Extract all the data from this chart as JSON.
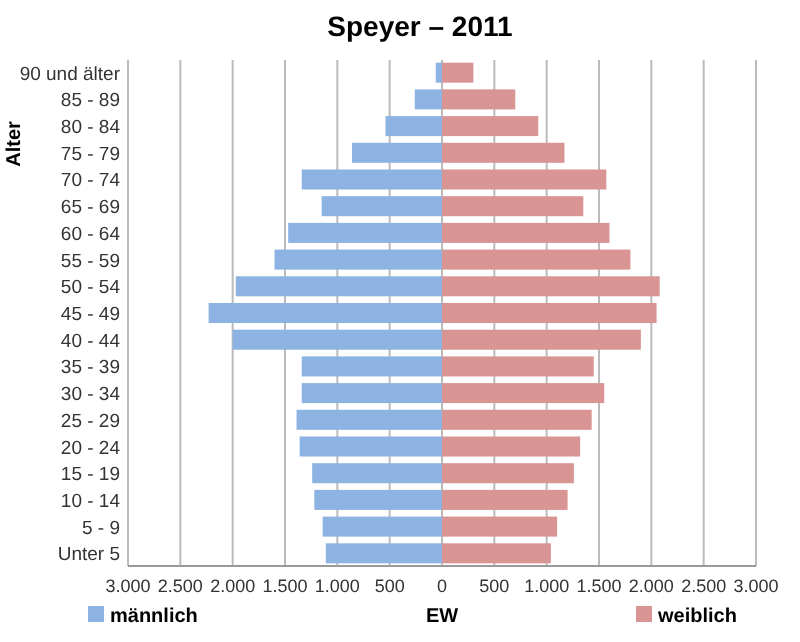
{
  "chart_data": {
    "type": "bar",
    "orientation": "horizontal",
    "title": "Speyer – 2011",
    "xlabel": "EW",
    "ylabel": "Alter",
    "categories": [
      "90 und älter",
      "85 - 89",
      "80 - 84",
      "75 - 79",
      "70 - 74",
      "65 - 69",
      "60 - 64",
      "55 - 59",
      "50 - 54",
      "45 - 49",
      "40 - 44",
      "35 - 39",
      "30 - 34",
      "25 - 29",
      "20 - 24",
      "15 - 19",
      "10 - 14",
      "5 - 9",
      "Unter 5"
    ],
    "series": [
      {
        "name": "männlich",
        "color": "#8db3e2",
        "values": [
          -60,
          -260,
          -540,
          -860,
          -1340,
          -1150,
          -1470,
          -1600,
          -1970,
          -2230,
          -2000,
          -1340,
          -1340,
          -1390,
          -1360,
          -1240,
          -1220,
          -1140,
          -1110
        ]
      },
      {
        "name": "weiblich",
        "color": "#d99594",
        "values": [
          300,
          700,
          920,
          1170,
          1570,
          1350,
          1600,
          1800,
          2080,
          2050,
          1900,
          1450,
          1550,
          1430,
          1320,
          1260,
          1200,
          1100,
          1040
        ]
      }
    ],
    "xlim": [
      -3000,
      3000
    ],
    "xticks": [
      {
        "value": -3000,
        "label": "3.000"
      },
      {
        "value": -2500,
        "label": "2.500"
      },
      {
        "value": -2000,
        "label": "2.000"
      },
      {
        "value": -1500,
        "label": "1.500"
      },
      {
        "value": -1000,
        "label": "1.000"
      },
      {
        "value": -500,
        "label": "500"
      },
      0,
      500,
      {
        "value": 1000,
        "label": "1.000"
      },
      {
        "value": 1500,
        "label": "1.500"
      },
      {
        "value": 2000,
        "label": "2.000"
      },
      {
        "value": 2500,
        "label": "2.500"
      },
      {
        "value": 3000,
        "label": "3.000"
      }
    ],
    "grid": "x",
    "legend": "bottom",
    "stacked": true
  }
}
